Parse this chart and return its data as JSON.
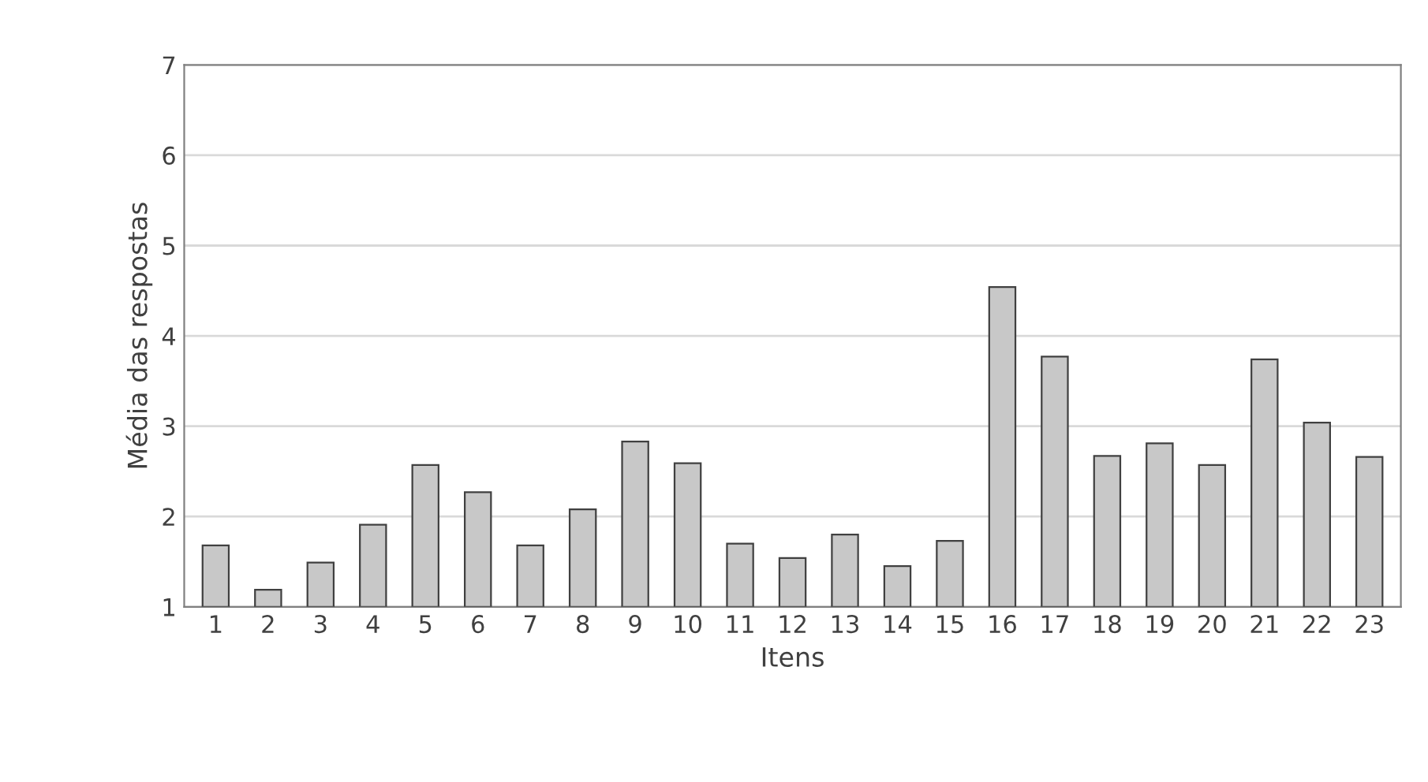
{
  "chart_data": {
    "type": "bar",
    "xlabel": "Itens",
    "ylabel": "Média das respostas",
    "categories": [
      "1",
      "2",
      "3",
      "4",
      "5",
      "6",
      "7",
      "8",
      "9",
      "10",
      "11",
      "12",
      "13",
      "14",
      "15",
      "16",
      "17",
      "18",
      "19",
      "20",
      "21",
      "22",
      "23"
    ],
    "values": [
      1.68,
      1.19,
      1.49,
      1.91,
      2.57,
      2.27,
      1.68,
      2.08,
      2.83,
      2.59,
      1.7,
      1.54,
      1.8,
      1.45,
      1.73,
      4.54,
      3.77,
      2.67,
      2.81,
      2.57,
      3.74,
      3.04,
      2.66
    ],
    "color": "#c8c8c8",
    "ylim": [
      1,
      7
    ],
    "yticks": [
      1,
      2,
      3,
      4,
      5,
      6,
      7
    ],
    "grid": "y",
    "legend": false
  }
}
